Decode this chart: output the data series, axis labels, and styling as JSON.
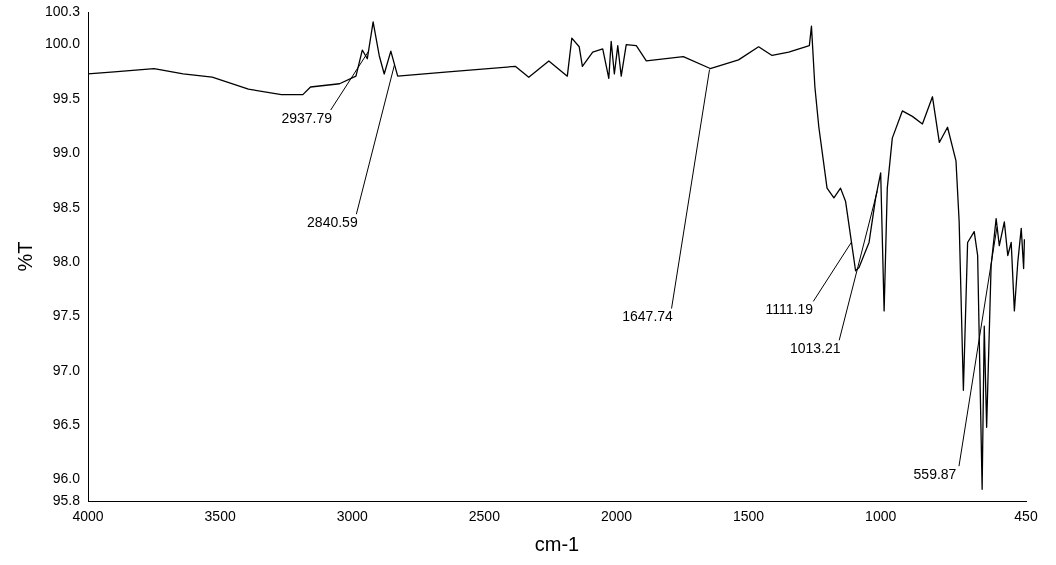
{
  "chart_data": {
    "type": "line",
    "xlabel": "cm-1",
    "ylabel": "%T",
    "xlim": [
      4000,
      450
    ],
    "xticks": [
      4000,
      3500,
      3000,
      2500,
      2000,
      1500,
      1000,
      450
    ],
    "ylim": [
      95.8,
      100.3
    ],
    "yticks": [
      95.8,
      {
        "value": 96,
        "label": "96.0"
      },
      96.5,
      {
        "value": 97,
        "label": "97.0"
      },
      97.5,
      {
        "value": 98,
        "label": "98.0"
      },
      98.5,
      {
        "value": 99,
        "label": "99.0"
      },
      99.5,
      {
        "value": 100,
        "label": "100.0"
      },
      100.3
    ],
    "marker": "none",
    "line_style": "solid",
    "x": [
      4000,
      3901,
      3750,
      3640,
      3530,
      3393,
      3268,
      3187,
      3158,
      3048,
      2986,
      2962,
      2943,
      2921,
      2898,
      2879,
      2854,
      2828,
      2637,
      2383,
      2332,
      2256,
      2186,
      2169,
      2141,
      2129,
      2090,
      2052,
      2029,
      2020,
      2008,
      1995,
      1982,
      1963,
      1925,
      1887,
      1747,
      1645,
      1538,
      1462,
      1411,
      1348,
      1285,
      1270,
      1262,
      1249,
      1234,
      1203,
      1177,
      1152,
      1133,
      1095,
      1082,
      1044,
      1019,
      1000,
      987,
      975,
      956,
      918,
      880,
      842,
      804,
      778,
      747,
      715,
      703,
      687,
      671,
      646,
      633,
      616,
      608,
      599,
      582,
      563,
      551,
      532,
      519,
      506,
      494,
      481,
      468,
      459,
      456
    ],
    "series": [
      {
        "color": "#000000",
        "values": [
          99.73,
          99.75,
          99.78,
          99.73,
          99.7,
          99.59,
          99.54,
          99.54,
          99.61,
          99.64,
          99.71,
          99.95,
          99.87,
          100.21,
          99.9,
          99.73,
          99.94,
          99.71,
          99.75,
          99.8,
          99.7,
          99.85,
          99.71,
          100.06,
          99.98,
          99.8,
          99.93,
          99.96,
          99.69,
          100.03,
          99.73,
          99.99,
          99.71,
          100.0,
          99.99,
          99.85,
          99.89,
          99.78,
          99.86,
          99.98,
          99.9,
          99.93,
          99.98,
          99.99,
          100.17,
          99.61,
          99.24,
          98.68,
          98.59,
          98.68,
          98.56,
          97.92,
          97.95,
          98.18,
          98.59,
          98.82,
          97.55,
          98.68,
          99.14,
          99.39,
          99.34,
          99.27,
          99.52,
          99.1,
          99.24,
          98.93,
          98.37,
          96.82,
          98.18,
          98.28,
          98.06,
          95.91,
          97.41,
          96.48,
          97.97,
          98.4,
          98.15,
          98.37,
          98.06,
          98.18,
          97.55,
          98.0,
          98.31,
          97.94,
          98.21
        ]
      }
    ],
    "annotations": [
      {
        "text": "2937.79",
        "x": 2937.79,
        "y": 99.95
      },
      {
        "text": "2840.59",
        "x": 2840.59,
        "y": 99.82
      },
      {
        "text": "1647.74",
        "x": 1647.74,
        "y": 99.78
      },
      {
        "text": "1111.19",
        "x": 1111.19,
        "y": 98.19
      },
      {
        "text": "1013.21",
        "x": 1013.21,
        "y": 98.66
      },
      {
        "text": "559.87",
        "x": 559.87,
        "y": 98.33
      }
    ]
  }
}
